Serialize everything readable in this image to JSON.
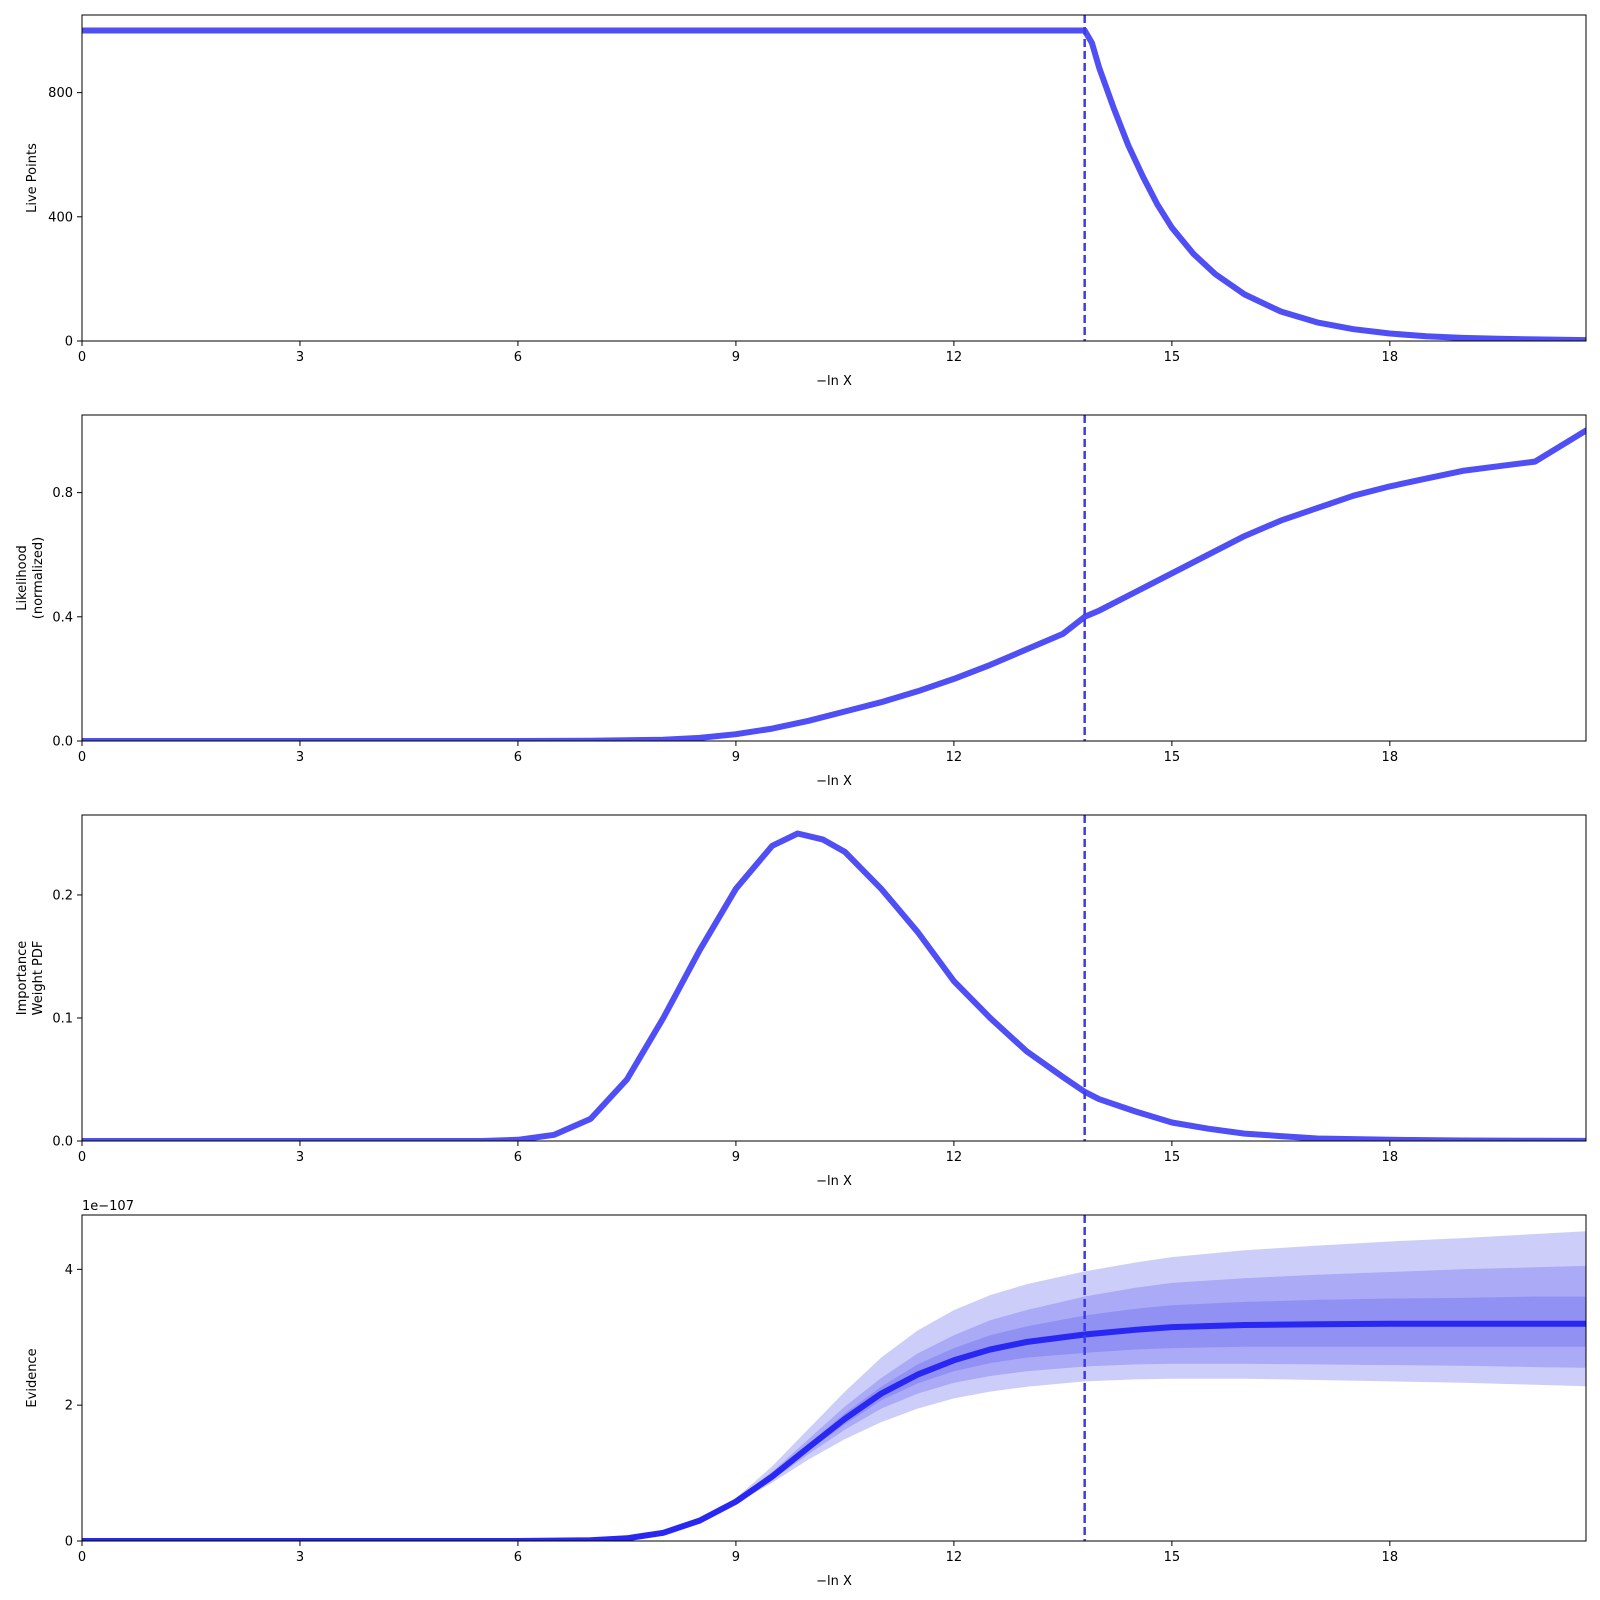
{
  "colors": {
    "line": "#4f4ff5",
    "evidence_line": "#2828f2",
    "band": "#5a5af0",
    "marker": "#3b3bec",
    "axes": "#000000"
  },
  "chart_data": [
    {
      "id": "live-points",
      "type": "line",
      "xlabel": "−ln X",
      "ylabel": [
        "Live Points"
      ],
      "xlim": [
        0,
        20.7
      ],
      "ylim": [
        0,
        1050
      ],
      "xticks": [
        0,
        3,
        6,
        9,
        12,
        15,
        18
      ],
      "yticks": [
        0,
        400,
        800
      ],
      "ytick_labels": [
        "0",
        "400",
        "800"
      ],
      "vline_x": 13.8,
      "series": [
        {
          "x": [
            0,
            13.8,
            13.9,
            14.0,
            14.2,
            14.4,
            14.6,
            14.8,
            15.0,
            15.3,
            15.6,
            16.0,
            16.5,
            17.0,
            17.5,
            18.0,
            18.5,
            19.0,
            19.5,
            20.0,
            20.7
          ],
          "y": [
            1000,
            1000,
            960,
            880,
            750,
            630,
            530,
            440,
            365,
            280,
            215,
            150,
            95,
            60,
            38,
            24,
            15,
            10,
            7,
            5,
            3
          ]
        }
      ]
    },
    {
      "id": "likelihood",
      "type": "line",
      "xlabel": "−ln X",
      "ylabel": [
        "Likelihood",
        "(normalized)"
      ],
      "xlim": [
        0,
        20.7
      ],
      "ylim": [
        0,
        1.05
      ],
      "xticks": [
        0,
        3,
        6,
        9,
        12,
        15,
        18
      ],
      "yticks": [
        0,
        0.4,
        0.8
      ],
      "ytick_labels": [
        "0.0",
        "0.4",
        "0.8"
      ],
      "vline_x": 13.8,
      "series": [
        {
          "x": [
            0,
            6,
            7,
            8,
            8.5,
            9,
            9.5,
            10,
            10.5,
            11,
            11.5,
            12,
            12.5,
            13,
            13.5,
            13.8,
            14,
            14.5,
            15,
            15.5,
            16,
            16.5,
            17,
            17.5,
            18,
            18.5,
            19,
            19.5,
            20,
            20.7
          ],
          "y": [
            0,
            0,
            0.001,
            0.004,
            0.01,
            0.022,
            0.04,
            0.065,
            0.095,
            0.125,
            0.16,
            0.2,
            0.245,
            0.295,
            0.345,
            0.4,
            0.42,
            0.48,
            0.54,
            0.6,
            0.66,
            0.71,
            0.75,
            0.79,
            0.82,
            0.845,
            0.87,
            0.885,
            0.9,
            1.0
          ]
        }
      ]
    },
    {
      "id": "importance-weight",
      "type": "line",
      "xlabel": "−ln X",
      "ylabel": [
        "Importance",
        "Weight PDF"
      ],
      "xlim": [
        0,
        20.7
      ],
      "ylim": [
        0,
        0.265
      ],
      "xticks": [
        0,
        3,
        6,
        9,
        12,
        15,
        18
      ],
      "yticks": [
        0,
        0.1,
        0.2
      ],
      "ytick_labels": [
        "0.0",
        "0.1",
        "0.2"
      ],
      "vline_x": 13.8,
      "series": [
        {
          "x": [
            0,
            5.5,
            6,
            6.5,
            7,
            7.5,
            8,
            8.5,
            9,
            9.5,
            9.85,
            10.2,
            10.5,
            11,
            11.5,
            12,
            12.5,
            13,
            13.5,
            13.8,
            14,
            14.5,
            15,
            15.5,
            16,
            16.5,
            17,
            18,
            19,
            20,
            20.7
          ],
          "y": [
            0,
            0,
            0.001,
            0.005,
            0.018,
            0.05,
            0.1,
            0.155,
            0.205,
            0.24,
            0.25,
            0.245,
            0.235,
            0.205,
            0.17,
            0.13,
            0.1,
            0.073,
            0.052,
            0.04,
            0.034,
            0.024,
            0.015,
            0.01,
            0.006,
            0.004,
            0.002,
            0.001,
            0.0004,
            0.0002,
            0.0001
          ]
        }
      ]
    },
    {
      "id": "evidence",
      "type": "area",
      "xlabel": "−ln X",
      "ylabel": [
        "Evidence"
      ],
      "offset_text": "1e−107",
      "xlim": [
        0,
        20.7
      ],
      "ylim": [
        0,
        4.8
      ],
      "xticks": [
        0,
        3,
        6,
        9,
        12,
        15,
        18
      ],
      "yticks": [
        0,
        2,
        4
      ],
      "ytick_labels": [
        "0",
        "2",
        "4"
      ],
      "vline_x": 13.8,
      "x": [
        0,
        6,
        7,
        7.5,
        8,
        8.5,
        9,
        9.5,
        10,
        10.5,
        11,
        11.5,
        12,
        12.5,
        13,
        13.8,
        14.5,
        15,
        16,
        17,
        18,
        19,
        20,
        20.7
      ],
      "median": [
        0,
        0,
        0.01,
        0.04,
        0.12,
        0.3,
        0.58,
        0.95,
        1.38,
        1.8,
        2.17,
        2.45,
        2.66,
        2.82,
        2.93,
        3.04,
        3.11,
        3.15,
        3.18,
        3.19,
        3.2,
        3.2,
        3.2,
        3.2
      ],
      "bands": [
        {
          "lower": [
            0,
            0,
            0.01,
            0.04,
            0.11,
            0.28,
            0.55,
            0.86,
            1.2,
            1.5,
            1.75,
            1.95,
            2.1,
            2.2,
            2.27,
            2.35,
            2.38,
            2.39,
            2.39,
            2.37,
            2.35,
            2.33,
            2.3,
            2.28
          ],
          "upper": [
            0,
            0,
            0.01,
            0.05,
            0.14,
            0.33,
            0.63,
            1.1,
            1.65,
            2.2,
            2.7,
            3.1,
            3.4,
            3.62,
            3.78,
            3.97,
            4.1,
            4.18,
            4.28,
            4.35,
            4.41,
            4.46,
            4.52,
            4.56
          ]
        },
        {
          "lower": [
            0,
            0,
            0.01,
            0.04,
            0.12,
            0.29,
            0.56,
            0.9,
            1.28,
            1.64,
            1.95,
            2.17,
            2.33,
            2.43,
            2.5,
            2.57,
            2.6,
            2.61,
            2.61,
            2.6,
            2.59,
            2.58,
            2.56,
            2.55
          ],
          "upper": [
            0,
            0,
            0.01,
            0.04,
            0.13,
            0.32,
            0.61,
            1.02,
            1.5,
            1.98,
            2.4,
            2.76,
            3.03,
            3.25,
            3.4,
            3.6,
            3.73,
            3.8,
            3.87,
            3.92,
            3.96,
            4.0,
            4.03,
            4.05
          ]
        },
        {
          "lower": [
            0,
            0,
            0.01,
            0.04,
            0.12,
            0.3,
            0.57,
            0.93,
            1.33,
            1.72,
            2.07,
            2.32,
            2.5,
            2.62,
            2.7,
            2.77,
            2.82,
            2.84,
            2.86,
            2.86,
            2.86,
            2.86,
            2.86,
            2.86
          ],
          "upper": [
            0,
            0,
            0.01,
            0.04,
            0.12,
            0.31,
            0.59,
            0.98,
            1.43,
            1.88,
            2.27,
            2.6,
            2.84,
            3.03,
            3.16,
            3.32,
            3.42,
            3.47,
            3.52,
            3.55,
            3.57,
            3.58,
            3.6,
            3.6
          ]
        }
      ]
    }
  ]
}
